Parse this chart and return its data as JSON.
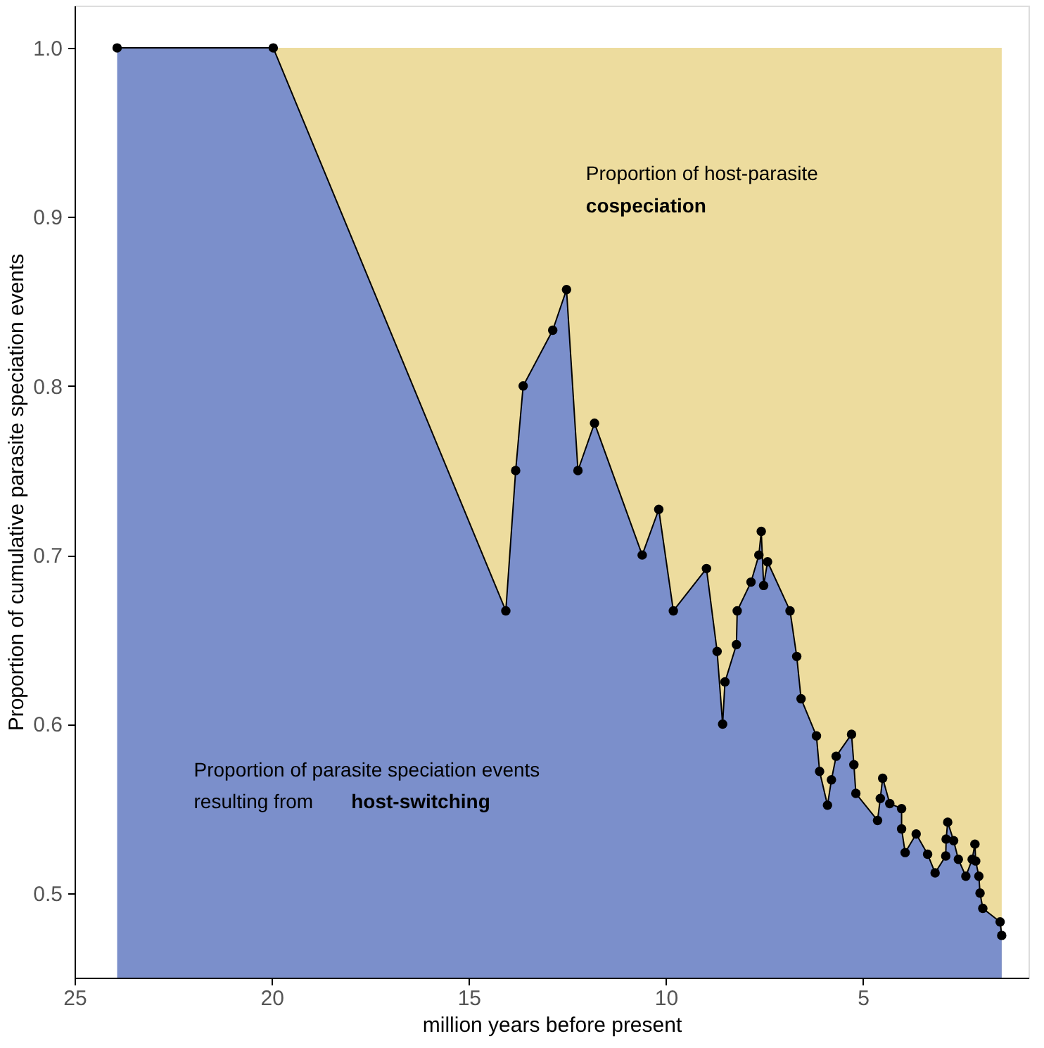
{
  "chart_data": {
    "type": "area",
    "xlabel": "million years before present",
    "ylabel": "Proportion of cumulative parasite speciation events",
    "x": [
      23.92,
      19.96,
      14.06,
      13.81,
      13.62,
      12.87,
      12.52,
      12.23,
      11.81,
      10.6,
      10.18,
      9.81,
      8.97,
      8.7,
      8.56,
      8.5,
      8.21,
      8.19,
      7.84,
      7.64,
      7.58,
      7.52,
      7.42,
      6.85,
      6.68,
      6.57,
      6.18,
      6.1,
      5.9,
      5.8,
      5.68,
      5.29,
      5.23,
      5.18,
      4.63,
      4.56,
      4.5,
      4.32,
      4.02,
      4.02,
      3.93,
      3.65,
      3.36,
      3.17,
      2.9,
      2.89,
      2.85,
      2.7,
      2.58,
      2.39,
      2.23,
      2.16,
      2.14,
      2.06,
      2.03,
      1.96,
      1.52,
      1.48
    ],
    "series": [
      {
        "color": "#7b8fcb",
        "marker": "circle",
        "values": [
          1.0,
          1.0,
          0.667,
          0.75,
          0.8,
          0.833,
          0.857,
          0.75,
          0.778,
          0.7,
          0.727,
          0.667,
          0.692,
          0.643,
          0.6,
          0.625,
          0.647,
          0.667,
          0.684,
          0.7,
          0.714,
          0.682,
          0.696,
          0.667,
          0.64,
          0.615,
          0.593,
          0.572,
          0.552,
          0.567,
          0.581,
          0.594,
          0.576,
          0.559,
          0.543,
          0.556,
          0.568,
          0.553,
          0.55,
          0.538,
          0.524,
          0.535,
          0.523,
          0.512,
          0.522,
          0.532,
          0.542,
          0.531,
          0.52,
          0.51,
          0.52,
          0.529,
          0.519,
          0.51,
          0.5,
          0.491,
          0.483,
          0.475
        ]
      },
      {
        "color": "#eddc9e",
        "marker": "none",
        "x": [
          19.96,
          1.48
        ],
        "values": [
          1.0,
          1.0
        ]
      }
    ],
    "xlim": [
      25,
      0.8
    ],
    "xticks": [
      25,
      20,
      15,
      10,
      5
    ],
    "ylim": [
      0.45,
      1.025
    ],
    "yticks": [
      {
        "value": 0.5,
        "label": "0.5"
      },
      {
        "value": 0.6,
        "label": "0.6"
      },
      {
        "value": 0.7,
        "label": "0.7"
      },
      {
        "value": 0.8,
        "label": "0.8"
      },
      {
        "value": 0.9,
        "label": "0.9"
      },
      {
        "value": 1.0,
        "label": "1.0"
      }
    ],
    "annotations": [
      "Proportion of host-parasite",
      "cospeciation",
      "Proportion of parasite speciation events",
      "resulting from",
      "host-switching"
    ]
  }
}
